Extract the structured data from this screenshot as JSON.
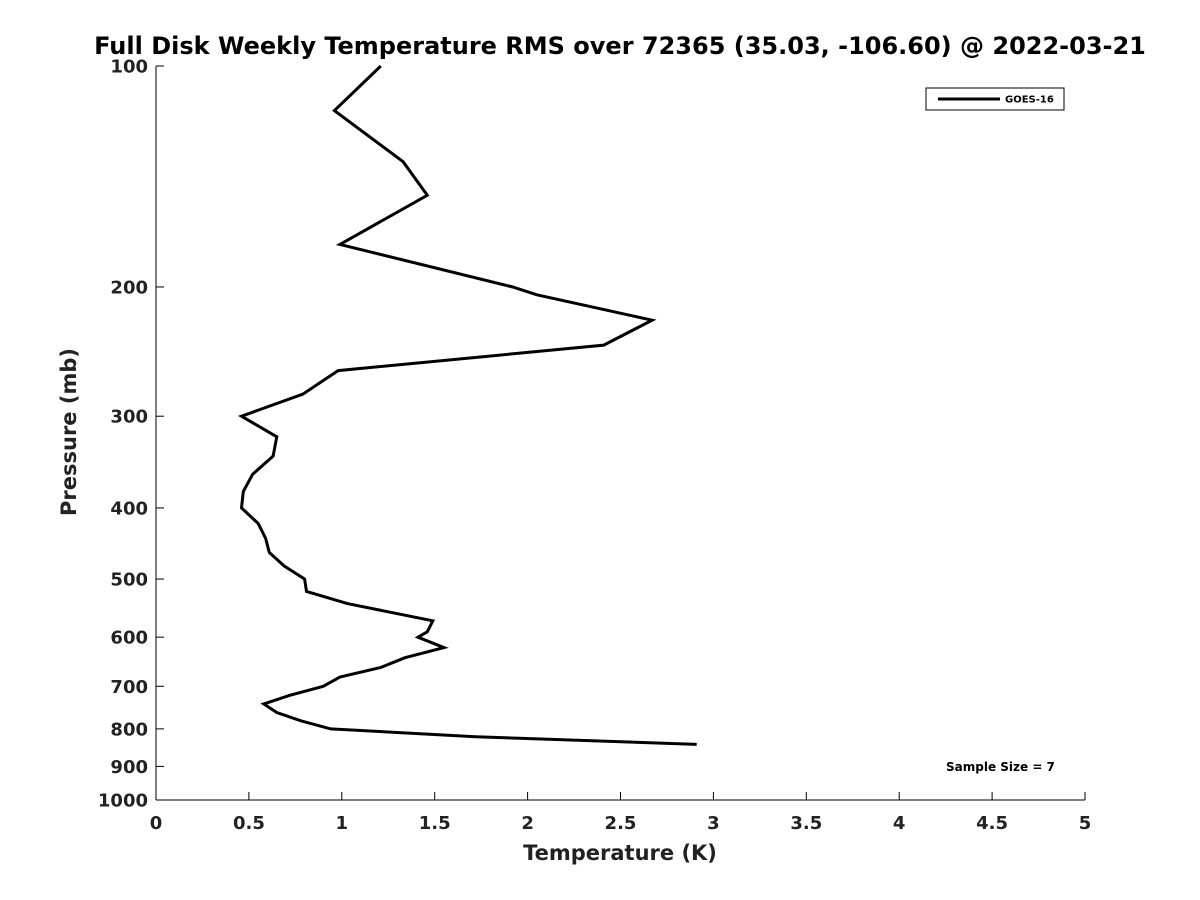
{
  "chart_data": {
    "type": "line",
    "title": "Full Disk Weekly Temperature RMS over 72365 (35.03, -106.60) @ 2022-03-21",
    "xlabel": "Temperature (K)",
    "ylabel": "Pressure (mb)",
    "xlim": [
      0,
      5
    ],
    "ylim": [
      100,
      1000
    ],
    "y_scale": "log",
    "y_reversed": true,
    "x_ticks": [
      0,
      0.5,
      1,
      1.5,
      2,
      2.5,
      3,
      3.5,
      4,
      4.5,
      5
    ],
    "y_ticks": [
      100,
      200,
      300,
      400,
      500,
      600,
      700,
      800,
      900,
      1000
    ],
    "grid": false,
    "legend_position": "top-right",
    "series": [
      {
        "name": "GOES-16",
        "color": "#000000",
        "points": [
          {
            "x": 1.21,
            "p": 100
          },
          {
            "x": 0.96,
            "p": 115
          },
          {
            "x": 1.33,
            "p": 135
          },
          {
            "x": 1.46,
            "p": 150
          },
          {
            "x": 0.99,
            "p": 175
          },
          {
            "x": 1.92,
            "p": 200
          },
          {
            "x": 2.05,
            "p": 205
          },
          {
            "x": 2.67,
            "p": 222
          },
          {
            "x": 2.41,
            "p": 240
          },
          {
            "x": 0.98,
            "p": 260
          },
          {
            "x": 0.79,
            "p": 280
          },
          {
            "x": 0.46,
            "p": 300
          },
          {
            "x": 0.65,
            "p": 320
          },
          {
            "x": 0.63,
            "p": 340
          },
          {
            "x": 0.52,
            "p": 360
          },
          {
            "x": 0.47,
            "p": 380
          },
          {
            "x": 0.46,
            "p": 400
          },
          {
            "x": 0.55,
            "p": 420
          },
          {
            "x": 0.59,
            "p": 440
          },
          {
            "x": 0.61,
            "p": 460
          },
          {
            "x": 0.69,
            "p": 480
          },
          {
            "x": 0.8,
            "p": 500
          },
          {
            "x": 0.81,
            "p": 520
          },
          {
            "x": 1.03,
            "p": 540
          },
          {
            "x": 1.49,
            "p": 570
          },
          {
            "x": 1.46,
            "p": 590
          },
          {
            "x": 1.41,
            "p": 600
          },
          {
            "x": 1.55,
            "p": 620
          },
          {
            "x": 1.34,
            "p": 640
          },
          {
            "x": 1.21,
            "p": 660
          },
          {
            "x": 0.99,
            "p": 680
          },
          {
            "x": 0.9,
            "p": 700
          },
          {
            "x": 0.72,
            "p": 720
          },
          {
            "x": 0.58,
            "p": 740
          },
          {
            "x": 0.65,
            "p": 760
          },
          {
            "x": 0.78,
            "p": 780
          },
          {
            "x": 0.94,
            "p": 800
          },
          {
            "x": 1.72,
            "p": 820
          },
          {
            "x": 2.91,
            "p": 840
          }
        ]
      }
    ],
    "annotations": [
      {
        "text": "Sample Size = 7",
        "position": "bottom-right"
      }
    ]
  }
}
